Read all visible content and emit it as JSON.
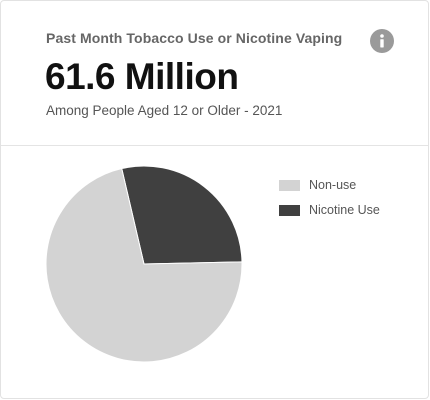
{
  "header": {
    "title": "Past Month Tobacco Use or Nicotine Vaping",
    "headline": "61.6 Million",
    "caption": "Among People Aged 12 or Older - 2021",
    "info_icon": "info-icon"
  },
  "colors": {
    "nonuse": "#d3d3d3",
    "nicotine": "#404040",
    "info_icon_bg": "#9a9a9a"
  },
  "chart_data": {
    "type": "pie",
    "title": "Past Month Tobacco Use or Nicotine Vaping",
    "categories": [
      "Non-use",
      "Nicotine Use"
    ],
    "values": [
      71.7,
      28.3
    ],
    "unit": "%",
    "legend_position": "right",
    "series": [
      {
        "name": "Non-use",
        "value": 71.7,
        "color": "#d3d3d3"
      },
      {
        "name": "Nicotine Use",
        "value": 28.3,
        "color": "#404040"
      }
    ]
  }
}
